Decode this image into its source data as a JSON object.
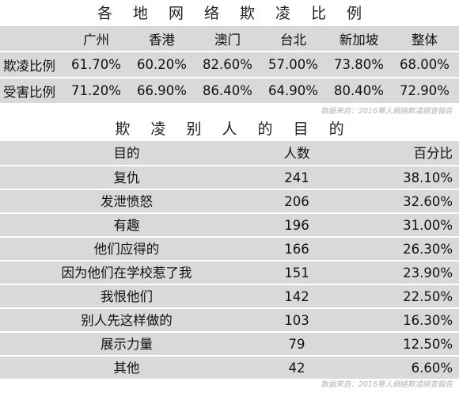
{
  "chart_data": [
    {
      "type": "table",
      "title": "各 地 网 络 欺 凌 比 例",
      "columns": [
        "广州",
        "香港",
        "澳门",
        "台北",
        "新加坡",
        "整体"
      ],
      "rows": [
        {
          "label": "欺凌比例",
          "values": [
            "61.70%",
            "60.20%",
            "82.60%",
            "57.00%",
            "73.80%",
            "68.00%"
          ]
        },
        {
          "label": "受害比例",
          "values": [
            "71.20%",
            "66.90%",
            "86.40%",
            "64.90%",
            "80.40%",
            "72.90%"
          ]
        }
      ],
      "source": "数据来自：2016華人網絡欺凌調查報告"
    },
    {
      "type": "table",
      "title": "欺 凌 别 人 的 目 的",
      "headers": [
        "目的",
        "人数",
        "百分比"
      ],
      "rows": [
        {
          "purpose": "复仇",
          "count": "241",
          "percent": "38.10%"
        },
        {
          "purpose": "发泄愤怒",
          "count": "206",
          "percent": "32.60%"
        },
        {
          "purpose": "有趣",
          "count": "196",
          "percent": "31.00%"
        },
        {
          "purpose": "他们应得的",
          "count": "166",
          "percent": "26.30%"
        },
        {
          "purpose": "因为他们在学校惹了我",
          "count": "151",
          "percent": "23.90%"
        },
        {
          "purpose": "我恨他们",
          "count": "142",
          "percent": "22.50%"
        },
        {
          "purpose": "别人先这样做的",
          "count": "103",
          "percent": "16.30%"
        },
        {
          "purpose": "展示力量",
          "count": "79",
          "percent": "12.50%"
        },
        {
          "purpose": "其他",
          "count": "42",
          "percent": "6.60%"
        }
      ],
      "source": "数据来自：2016華人網絡欺凌調查報告"
    }
  ],
  "colors": {
    "band": "#d9d9d9",
    "source_text": "#b3b3b3"
  }
}
